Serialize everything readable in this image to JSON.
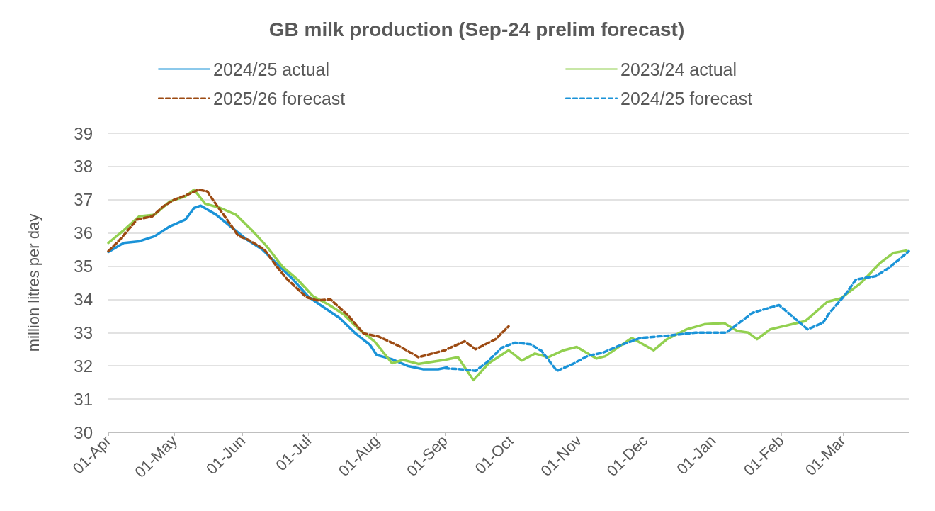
{
  "chart_data": {
    "type": "line",
    "title": "GB milk production (Sep-24 prelim forecast)",
    "ylabel": "million litres per day",
    "ylim": [
      30,
      39
    ],
    "yticks": [
      30,
      31,
      32,
      33,
      34,
      35,
      36,
      37,
      38,
      39
    ],
    "xlim": [
      "2024-04-01",
      "2025-03-31"
    ],
    "xticks": [
      {
        "value": "2024-04-01",
        "label": "01-Apr"
      },
      {
        "value": "2024-05-01",
        "label": "01-May"
      },
      {
        "value": "2024-06-01",
        "label": "01-Jun"
      },
      {
        "value": "2024-07-01",
        "label": "01-Jul"
      },
      {
        "value": "2024-08-01",
        "label": "01-Aug"
      },
      {
        "value": "2024-09-01",
        "label": "01-Sep"
      },
      {
        "value": "2024-10-01",
        "label": "01-Oct"
      },
      {
        "value": "2024-11-01",
        "label": "01-Nov"
      },
      {
        "value": "2024-12-01",
        "label": "01-Dec"
      },
      {
        "value": "2025-01-01",
        "label": "01-Jan"
      },
      {
        "value": "2025-02-01",
        "label": "01-Feb"
      },
      {
        "value": "2025-03-01",
        "label": "01-Mar"
      }
    ],
    "grid": "y",
    "legend": "top",
    "marker": "none",
    "series": [
      {
        "name": "2024/25 actual",
        "color": "#1a93d8",
        "line_style": "solid",
        "x": [
          "2024-04-01",
          "2024-04-08",
          "2024-04-15",
          "2024-04-22",
          "2024-04-29",
          "2024-05-06",
          "2024-05-10",
          "2024-05-13",
          "2024-05-20",
          "2024-05-27",
          "2024-06-03",
          "2024-06-10",
          "2024-06-17",
          "2024-06-24",
          "2024-07-01",
          "2024-07-08",
          "2024-07-15",
          "2024-07-22",
          "2024-07-29",
          "2024-08-01",
          "2024-08-08",
          "2024-08-15",
          "2024-08-22",
          "2024-08-29",
          "2024-09-02"
        ],
        "values": [
          35.43,
          35.7,
          35.75,
          35.9,
          36.2,
          36.4,
          36.75,
          36.82,
          36.55,
          36.17,
          35.8,
          35.5,
          35.05,
          34.6,
          34.08,
          33.76,
          33.45,
          33.0,
          32.63,
          32.33,
          32.2,
          32.0,
          31.9,
          31.9,
          31.95
        ]
      },
      {
        "name": "2023/24 actual",
        "color": "#92d050",
        "line_style": "solid",
        "x": [
          "2024-04-01",
          "2024-04-08",
          "2024-04-15",
          "2024-04-22",
          "2024-04-29",
          "2024-05-06",
          "2024-05-10",
          "2024-05-15",
          "2024-05-22",
          "2024-05-29",
          "2024-06-05",
          "2024-06-12",
          "2024-06-19",
          "2024-06-26",
          "2024-07-03",
          "2024-07-10",
          "2024-07-17",
          "2024-07-24",
          "2024-07-31",
          "2024-08-08",
          "2024-08-13",
          "2024-08-20",
          "2024-09-01",
          "2024-09-07",
          "2024-09-14",
          "2024-09-21",
          "2024-09-30",
          "2024-10-06",
          "2024-10-12",
          "2024-10-18",
          "2024-10-25",
          "2024-10-31",
          "2024-11-09",
          "2024-11-13",
          "2024-11-25",
          "2024-12-05",
          "2024-12-11",
          "2024-12-20",
          "2024-12-28",
          "2025-01-06",
          "2025-01-12",
          "2025-01-17",
          "2025-01-21",
          "2025-01-27",
          "2025-02-12",
          "2025-02-22",
          "2025-02-28",
          "2025-03-09",
          "2025-03-18",
          "2025-03-24",
          "2025-03-30"
        ],
        "values": [
          35.7,
          36.08,
          36.5,
          36.55,
          36.95,
          37.1,
          37.3,
          36.88,
          36.75,
          36.55,
          36.1,
          35.6,
          35.0,
          34.6,
          34.1,
          33.85,
          33.55,
          33.1,
          32.74,
          32.08,
          32.18,
          32.06,
          32.18,
          32.26,
          31.57,
          32.08,
          32.47,
          32.16,
          32.37,
          32.26,
          32.47,
          32.57,
          32.22,
          32.29,
          32.84,
          32.47,
          32.8,
          33.1,
          33.25,
          33.29,
          33.05,
          33.0,
          32.8,
          33.1,
          33.35,
          33.93,
          34.03,
          34.48,
          35.1,
          35.4,
          35.47
        ]
      },
      {
        "name": "2025/26 forecast",
        "color": "#9c4a12",
        "line_style": "dashed",
        "x": [
          "2024-04-01",
          "2024-04-06",
          "2024-04-14",
          "2024-04-21",
          "2024-04-26",
          "2024-05-01",
          "2024-05-07",
          "2024-05-12",
          "2024-05-16",
          "2024-05-19",
          "2024-05-25",
          "2024-05-30",
          "2024-06-04",
          "2024-06-11",
          "2024-06-16",
          "2024-06-21",
          "2024-06-30",
          "2024-07-05",
          "2024-07-11",
          "2024-07-19",
          "2024-07-26",
          "2024-08-02",
          "2024-08-12",
          "2024-08-20",
          "2024-09-01",
          "2024-09-10",
          "2024-09-15",
          "2024-09-24",
          "2024-09-30"
        ],
        "values": [
          35.45,
          35.78,
          36.4,
          36.5,
          36.8,
          37.0,
          37.15,
          37.3,
          37.25,
          36.95,
          36.4,
          35.92,
          35.78,
          35.5,
          35.04,
          34.63,
          34.07,
          33.97,
          34.0,
          33.52,
          32.98,
          32.88,
          32.57,
          32.26,
          32.47,
          32.74,
          32.5,
          32.8,
          33.19
        ]
      },
      {
        "name": "2024/25 forecast",
        "color": "#1a93d8",
        "line_style": "dashed",
        "x": [
          "2024-09-01",
          "2024-09-08",
          "2024-09-15",
          "2024-09-20",
          "2024-09-27",
          "2024-10-03",
          "2024-10-10",
          "2024-10-15",
          "2024-10-22",
          "2024-10-29",
          "2024-11-05",
          "2024-11-12",
          "2024-11-19",
          "2024-11-29",
          "2024-12-10",
          "2024-12-24",
          "2025-01-07",
          "2025-01-19",
          "2025-01-31",
          "2025-02-13",
          "2025-02-20",
          "2025-02-23",
          "2025-03-02",
          "2025-03-07",
          "2025-03-16",
          "2025-03-22",
          "2025-03-31"
        ],
        "values": [
          31.93,
          31.9,
          31.85,
          32.1,
          32.55,
          32.7,
          32.65,
          32.45,
          31.85,
          32.05,
          32.3,
          32.4,
          32.6,
          32.84,
          32.9,
          33.0,
          33.0,
          33.6,
          33.83,
          33.1,
          33.3,
          33.6,
          34.13,
          34.6,
          34.7,
          34.95,
          35.45
        ]
      }
    ]
  }
}
